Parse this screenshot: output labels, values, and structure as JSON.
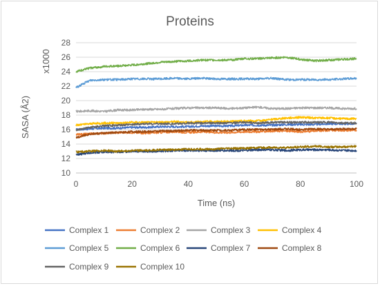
{
  "chart_data": {
    "type": "line",
    "title": "Proteins",
    "xlabel": "Time (ns)",
    "ylabel": "SASA  (Å2)",
    "y_multiplier_label": "x1000",
    "xlim": [
      0,
      100
    ],
    "ylim": [
      10,
      28
    ],
    "xticks": [
      0,
      20,
      40,
      60,
      80,
      100
    ],
    "yticks": [
      10,
      12,
      14,
      16,
      18,
      20,
      22,
      24,
      26,
      28
    ],
    "grid": "horizontal",
    "legend_position": "bottom",
    "x": [
      0,
      5,
      10,
      15,
      20,
      25,
      30,
      35,
      40,
      45,
      50,
      55,
      60,
      65,
      70,
      75,
      80,
      85,
      90,
      95,
      100
    ],
    "series": [
      {
        "name": "Complex 1",
        "color": "#4472c4",
        "values": [
          16.0,
          16.1,
          16.2,
          16.2,
          16.3,
          16.3,
          16.4,
          16.4,
          16.4,
          16.5,
          16.5,
          16.5,
          16.6,
          16.6,
          16.6,
          16.7,
          16.7,
          16.7,
          16.8,
          16.8,
          16.8
        ]
      },
      {
        "name": "Complex 2",
        "color": "#ed7d31",
        "values": [
          15.3,
          15.4,
          15.5,
          15.6,
          15.6,
          15.5,
          15.6,
          15.7,
          15.6,
          15.7,
          15.6,
          15.6,
          15.7,
          15.7,
          15.8,
          15.8,
          15.7,
          15.8,
          15.9,
          15.9,
          15.9
        ]
      },
      {
        "name": "Complex 3",
        "color": "#a5a5a5",
        "values": [
          18.5,
          18.6,
          18.5,
          18.7,
          18.7,
          18.8,
          18.8,
          18.9,
          19.0,
          19.0,
          19.0,
          18.9,
          19.0,
          19.1,
          18.9,
          18.9,
          19.0,
          19.0,
          19.0,
          18.9,
          18.9
        ]
      },
      {
        "name": "Complex 4",
        "color": "#ffc000",
        "values": [
          16.6,
          16.8,
          16.9,
          16.9,
          17.0,
          17.0,
          17.0,
          17.1,
          17.0,
          17.1,
          17.1,
          17.1,
          17.2,
          17.2,
          17.4,
          17.6,
          17.7,
          17.6,
          17.6,
          17.5,
          17.5
        ]
      },
      {
        "name": "Complex 5",
        "color": "#5b9bd5",
        "values": [
          21.8,
          22.8,
          22.9,
          22.9,
          23.0,
          23.0,
          23.0,
          23.1,
          23.0,
          23.1,
          23.0,
          23.0,
          23.0,
          23.0,
          23.1,
          22.9,
          22.9,
          22.9,
          22.9,
          23.0,
          23.1
        ]
      },
      {
        "name": "Complex 6",
        "color": "#70ad47",
        "values": [
          24.0,
          24.5,
          24.7,
          24.8,
          24.9,
          25.1,
          25.3,
          25.4,
          25.5,
          25.6,
          25.6,
          25.6,
          25.8,
          25.8,
          25.9,
          26.0,
          25.7,
          25.5,
          25.6,
          25.7,
          25.8
        ]
      },
      {
        "name": "Complex 7",
        "color": "#264478",
        "values": [
          12.5,
          12.8,
          12.9,
          12.9,
          13.0,
          13.0,
          13.0,
          13.1,
          13.1,
          13.1,
          13.1,
          13.1,
          13.1,
          13.2,
          13.2,
          13.1,
          13.2,
          13.2,
          13.2,
          13.1,
          13.1
        ]
      },
      {
        "name": "Complex 8",
        "color": "#9e480e",
        "values": [
          14.9,
          15.4,
          15.5,
          15.6,
          15.7,
          15.7,
          15.8,
          15.8,
          15.9,
          15.9,
          15.9,
          15.9,
          16.0,
          16.0,
          16.0,
          16.1,
          16.0,
          16.1,
          16.0,
          16.1,
          16.1
        ]
      },
      {
        "name": "Complex 9",
        "color": "#636363",
        "values": [
          15.9,
          16.3,
          16.5,
          16.6,
          16.7,
          16.8,
          16.8,
          16.8,
          16.9,
          16.9,
          16.9,
          16.9,
          17.0,
          16.9,
          17.0,
          17.0,
          17.0,
          17.0,
          17.0,
          16.9,
          16.9
        ]
      },
      {
        "name": "Complex 10",
        "color": "#997300",
        "values": [
          12.9,
          13.0,
          13.1,
          13.0,
          13.1,
          13.1,
          13.2,
          13.2,
          13.3,
          13.3,
          13.3,
          13.4,
          13.4,
          13.5,
          13.5,
          13.5,
          13.6,
          13.7,
          13.6,
          13.6,
          13.7
        ]
      }
    ]
  }
}
